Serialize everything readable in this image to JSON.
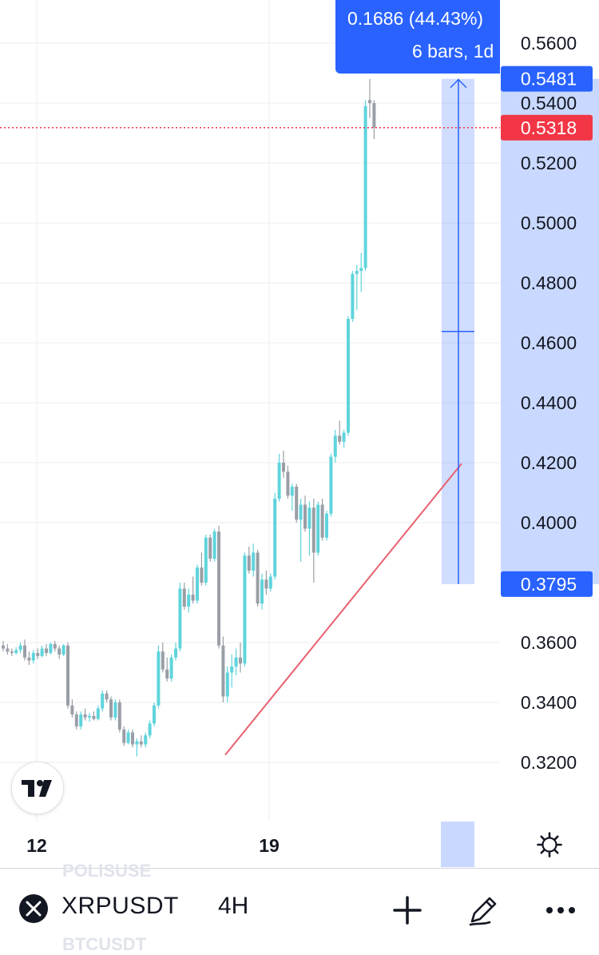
{
  "chart_data": {
    "type": "candlestick",
    "symbol": "XRPUSDT",
    "timeframe": "4H",
    "y_ticks": [
      "0.5600",
      "0.5400",
      "0.5200",
      "0.5000",
      "0.4800",
      "0.4600",
      "0.4400",
      "0.4200",
      "0.4000",
      "0.3600",
      "0.3400",
      "0.3200"
    ],
    "x_ticks": [
      "12",
      "19"
    ],
    "ylim": [
      0.3103,
      0.5735
    ],
    "grid": true,
    "colors": {
      "up": "#5fd4dc",
      "down": "#9a9ea6",
      "last_price": "#f23645",
      "measure": "#2962ff",
      "trendline": "#e8606e"
    },
    "last_price": {
      "label": "0.5318",
      "value": 0.5318
    },
    "measure": {
      "from_label": "0.3795",
      "from": 0.3795,
      "to_label": "0.5481",
      "to": 0.5481,
      "change_text": "0.1686 (44.43%)",
      "bars_text": "6 bars, 1d"
    },
    "trendline": [
      [
        0.323,
        0.3225
      ],
      [
        0.344,
        0.3398
      ],
      [
        0.356,
        0.4197
      ]
    ],
    "candles": [
      [
        0.359,
        0.3605,
        0.357,
        0.358
      ],
      [
        0.358,
        0.3595,
        0.356,
        0.357
      ],
      [
        0.357,
        0.358,
        0.3555,
        0.3565
      ],
      [
        0.3565,
        0.3585,
        0.356,
        0.3575
      ],
      [
        0.3575,
        0.36,
        0.3565,
        0.359
      ],
      [
        0.359,
        0.361,
        0.354,
        0.355
      ],
      [
        0.355,
        0.357,
        0.3525,
        0.354
      ],
      [
        0.354,
        0.3575,
        0.353,
        0.3565
      ],
      [
        0.3565,
        0.358,
        0.3545,
        0.3555
      ],
      [
        0.3555,
        0.359,
        0.355,
        0.358
      ],
      [
        0.358,
        0.3595,
        0.3555,
        0.3565
      ],
      [
        0.3565,
        0.36,
        0.356,
        0.3595
      ],
      [
        0.3595,
        0.3605,
        0.357,
        0.358
      ],
      [
        0.358,
        0.359,
        0.3545,
        0.356
      ],
      [
        0.356,
        0.3595,
        0.3555,
        0.359
      ],
      [
        0.359,
        0.36,
        0.338,
        0.339
      ],
      [
        0.339,
        0.341,
        0.335,
        0.336
      ],
      [
        0.336,
        0.337,
        0.331,
        0.332
      ],
      [
        0.332,
        0.337,
        0.331,
        0.336
      ],
      [
        0.336,
        0.338,
        0.334,
        0.335
      ],
      [
        0.335,
        0.3365,
        0.3335,
        0.3355
      ],
      [
        0.3355,
        0.337,
        0.334,
        0.3345
      ],
      [
        0.3345,
        0.339,
        0.334,
        0.338
      ],
      [
        0.338,
        0.344,
        0.337,
        0.343
      ],
      [
        0.343,
        0.344,
        0.34,
        0.341
      ],
      [
        0.341,
        0.342,
        0.334,
        0.335
      ],
      [
        0.335,
        0.341,
        0.334,
        0.34
      ],
      [
        0.34,
        0.341,
        0.33,
        0.331
      ],
      [
        0.331,
        0.332,
        0.3255,
        0.3265
      ],
      [
        0.3265,
        0.331,
        0.326,
        0.33
      ],
      [
        0.33,
        0.331,
        0.325,
        0.326
      ],
      [
        0.326,
        0.328,
        0.322,
        0.327
      ],
      [
        0.327,
        0.329,
        0.325,
        0.326
      ],
      [
        0.326,
        0.33,
        0.325,
        0.329
      ],
      [
        0.329,
        0.334,
        0.328,
        0.333
      ],
      [
        0.333,
        0.34,
        0.332,
        0.339
      ],
      [
        0.339,
        0.359,
        0.338,
        0.357
      ],
      [
        0.357,
        0.36,
        0.35,
        0.351
      ],
      [
        0.351,
        0.355,
        0.347,
        0.348
      ],
      [
        0.348,
        0.356,
        0.347,
        0.355
      ],
      [
        0.355,
        0.36,
        0.354,
        0.358
      ],
      [
        0.358,
        0.38,
        0.357,
        0.378
      ],
      [
        0.378,
        0.38,
        0.371,
        0.372
      ],
      [
        0.372,
        0.378,
        0.37,
        0.376
      ],
      [
        0.376,
        0.382,
        0.373,
        0.374
      ],
      [
        0.374,
        0.386,
        0.373,
        0.385
      ],
      [
        0.385,
        0.39,
        0.379,
        0.38
      ],
      [
        0.38,
        0.396,
        0.379,
        0.395
      ],
      [
        0.395,
        0.396,
        0.387,
        0.388
      ],
      [
        0.388,
        0.398,
        0.387,
        0.397
      ],
      [
        0.397,
        0.399,
        0.358,
        0.359
      ],
      [
        0.359,
        0.362,
        0.34,
        0.342
      ],
      [
        0.342,
        0.352,
        0.34,
        0.35
      ],
      [
        0.35,
        0.356,
        0.345,
        0.352
      ],
      [
        0.352,
        0.358,
        0.349,
        0.355
      ],
      [
        0.355,
        0.36,
        0.35,
        0.353
      ],
      [
        0.353,
        0.39,
        0.352,
        0.389
      ],
      [
        0.389,
        0.392,
        0.383,
        0.384
      ],
      [
        0.384,
        0.393,
        0.382,
        0.39
      ],
      [
        0.39,
        0.391,
        0.372,
        0.373
      ],
      [
        0.373,
        0.383,
        0.371,
        0.381
      ],
      [
        0.381,
        0.384,
        0.376,
        0.378
      ],
      [
        0.378,
        0.383,
        0.377,
        0.382
      ],
      [
        0.382,
        0.41,
        0.381,
        0.408
      ],
      [
        0.408,
        0.423,
        0.407,
        0.42
      ],
      [
        0.42,
        0.424,
        0.415,
        0.417
      ],
      [
        0.417,
        0.419,
        0.408,
        0.409
      ],
      [
        0.409,
        0.413,
        0.404,
        0.412
      ],
      [
        0.412,
        0.413,
        0.4,
        0.401
      ],
      [
        0.401,
        0.408,
        0.387,
        0.406
      ],
      [
        0.406,
        0.409,
        0.397,
        0.398
      ],
      [
        0.398,
        0.407,
        0.389,
        0.405
      ],
      [
        0.405,
        0.408,
        0.38,
        0.39
      ],
      [
        0.39,
        0.407,
        0.389,
        0.406
      ],
      [
        0.406,
        0.408,
        0.394,
        0.395
      ],
      [
        0.395,
        0.404,
        0.394,
        0.403
      ],
      [
        0.403,
        0.423,
        0.402,
        0.422
      ],
      [
        0.422,
        0.431,
        0.42,
        0.429
      ],
      [
        0.429,
        0.434,
        0.426,
        0.427
      ],
      [
        0.427,
        0.431,
        0.425,
        0.43
      ],
      [
        0.43,
        0.469,
        0.429,
        0.468
      ],
      [
        0.468,
        0.484,
        0.467,
        0.483
      ],
      [
        0.483,
        0.486,
        0.471,
        0.484
      ],
      [
        0.484,
        0.49,
        0.477,
        0.485
      ],
      [
        0.485,
        0.541,
        0.484,
        0.539
      ],
      [
        0.541,
        0.548,
        0.535,
        0.54
      ],
      [
        0.54,
        0.541,
        0.528,
        0.5318
      ]
    ]
  },
  "toolbar": {
    "symbol": "XRPUSDT",
    "timeframe": "4H",
    "watchlist_ghost": [
      "POLISUSE",
      "BTCUSDT"
    ]
  },
  "icons": {
    "symbol_icon": "xrp-logo-icon",
    "add": "plus-icon",
    "draw": "pencil-icon",
    "more": "more-dots-icon",
    "settings": "gear-icon",
    "brand": "tradingview-logo-icon"
  }
}
